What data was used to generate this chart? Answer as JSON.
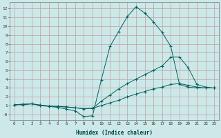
{
  "xlabel": "Humidex (Indice chaleur)",
  "bg_color": "#cce8e8",
  "grid_color": "#c0a0a0",
  "line_color": "#006060",
  "xlim": [
    -0.5,
    23.5
  ],
  "ylim": [
    -0.6,
    12.7
  ],
  "xticks": [
    0,
    1,
    2,
    3,
    4,
    5,
    6,
    7,
    8,
    9,
    10,
    11,
    12,
    13,
    14,
    15,
    16,
    17,
    18,
    19,
    20,
    21,
    22,
    23
  ],
  "yticks": [
    0,
    1,
    2,
    3,
    4,
    5,
    6,
    7,
    8,
    9,
    10,
    11,
    12
  ],
  "ytick_labels": [
    "-0",
    "1",
    "2",
    "3",
    "4",
    "5",
    "6",
    "7",
    "8",
    "9",
    "10",
    "11",
    "12"
  ],
  "line1_x": [
    0,
    1,
    2,
    3,
    4,
    5,
    6,
    7,
    8,
    9,
    10,
    11,
    12,
    13,
    14,
    15,
    16,
    17,
    18,
    19,
    20,
    21,
    22,
    23
  ],
  "line1_y": [
    1.1,
    1.1,
    1.2,
    1.0,
    0.9,
    0.8,
    0.6,
    0.4,
    -0.25,
    -0.15,
    3.9,
    7.7,
    9.4,
    11.1,
    12.2,
    11.5,
    10.5,
    9.3,
    7.7,
    3.4,
    3.1,
    3.0,
    3.0,
    3.0
  ],
  "line2_x": [
    0,
    1,
    2,
    3,
    4,
    5,
    6,
    7,
    8,
    9,
    10,
    11,
    12,
    13,
    14,
    15,
    16,
    17,
    18,
    19,
    20,
    21,
    22,
    23
  ],
  "line2_y": [
    1.1,
    1.15,
    1.2,
    1.05,
    0.95,
    0.9,
    0.85,
    0.75,
    0.65,
    0.7,
    1.5,
    2.2,
    2.9,
    3.5,
    4.0,
    4.5,
    5.0,
    5.5,
    6.5,
    6.5,
    5.3,
    3.4,
    3.1,
    3.0
  ],
  "line3_x": [
    0,
    1,
    2,
    3,
    4,
    5,
    6,
    7,
    8,
    9,
    10,
    11,
    12,
    13,
    14,
    15,
    16,
    17,
    18,
    19,
    20,
    21,
    22,
    23
  ],
  "line3_y": [
    1.1,
    1.15,
    1.2,
    1.05,
    0.95,
    0.9,
    0.85,
    0.75,
    0.65,
    0.7,
    1.0,
    1.3,
    1.6,
    2.0,
    2.3,
    2.6,
    2.9,
    3.1,
    3.4,
    3.5,
    3.3,
    3.1,
    3.0,
    3.0
  ]
}
